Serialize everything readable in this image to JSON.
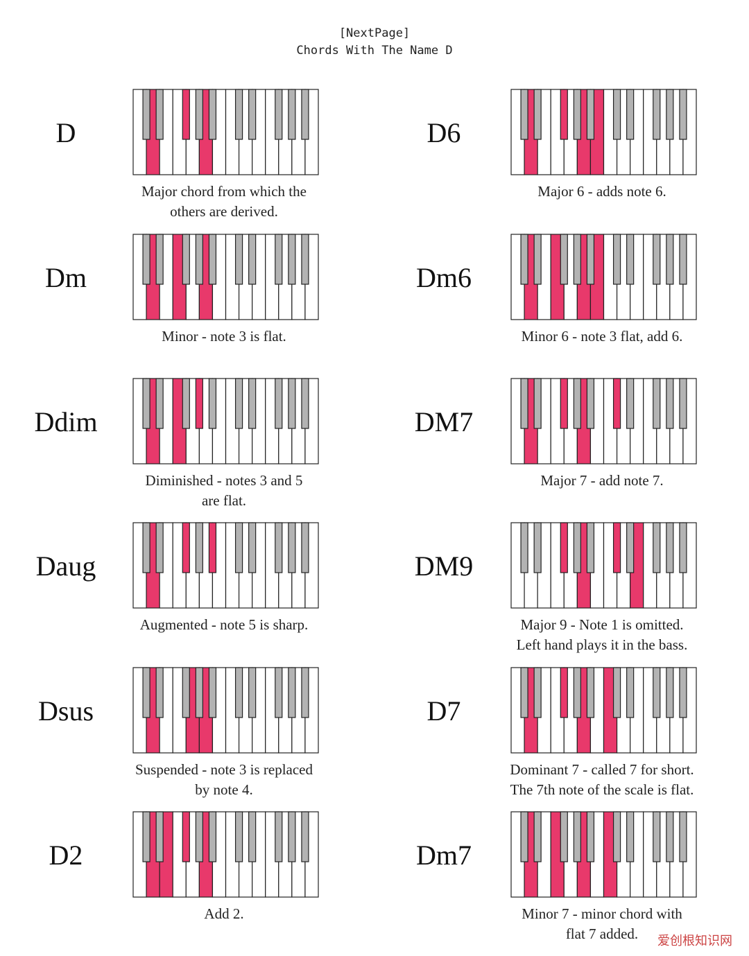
{
  "header": {
    "line1": "[NextPage]",
    "line2": "Chords With The Name D"
  },
  "colors": {
    "highlight": "#e8396b",
    "black_key": "#b3b3b3",
    "outline": "#222222"
  },
  "keyboard": {
    "white_keys": 14,
    "black_positions": [
      1,
      2,
      4,
      5,
      6,
      8,
      9,
      11,
      12,
      13
    ]
  },
  "chords": [
    {
      "name": "D",
      "caption": "Major chord from which the\nothers are derived.",
      "white": [
        1,
        5
      ],
      "black": [
        4
      ]
    },
    {
      "name": "D6",
      "caption": "Major 6 - adds note 6.",
      "white": [
        1,
        5,
        6
      ],
      "black": [
        4
      ]
    },
    {
      "name": "Dm",
      "caption": "Minor - note 3 is flat.",
      "white": [
        1,
        3,
        5
      ],
      "black": []
    },
    {
      "name": "Dm6",
      "caption": "Minor 6 - note 3 flat, add 6.",
      "white": [
        1,
        3,
        5,
        6
      ],
      "black": []
    },
    {
      "name": "Ddim",
      "caption": "Diminished - notes 3 and 5\nare flat.",
      "white": [
        1,
        3
      ],
      "black": [
        5
      ]
    },
    {
      "name": "DM7",
      "caption": "Major 7 - add note 7.",
      "white": [
        1,
        5
      ],
      "black": [
        4,
        8
      ]
    },
    {
      "name": "Daug",
      "caption": "Augmented - note 5 is sharp.",
      "white": [
        1
      ],
      "black": [
        4,
        6
      ]
    },
    {
      "name": "DM9",
      "caption": "Major 9 - Note 1 is omitted.\nLeft hand plays it in the bass.",
      "white": [
        5,
        9
      ],
      "black": [
        4,
        8
      ]
    },
    {
      "name": "Dsus",
      "caption": "Suspended - note 3 is replaced\nby note 4.",
      "white": [
        1,
        4,
        5
      ],
      "black": []
    },
    {
      "name": "D7",
      "caption": "Dominant 7 - called 7 for short.\nThe 7th note of the scale is flat.",
      "white": [
        1,
        5,
        7
      ],
      "black": [
        4
      ]
    },
    {
      "name": "D2",
      "caption": "Add 2.",
      "white": [
        1,
        2,
        5
      ],
      "black": [
        4
      ]
    },
    {
      "name": "Dm7",
      "caption": "Minor 7 - minor chord with\nflat 7 added.",
      "white": [
        1,
        3,
        5,
        7
      ],
      "black": []
    }
  ],
  "watermark": "爱创根知识网"
}
